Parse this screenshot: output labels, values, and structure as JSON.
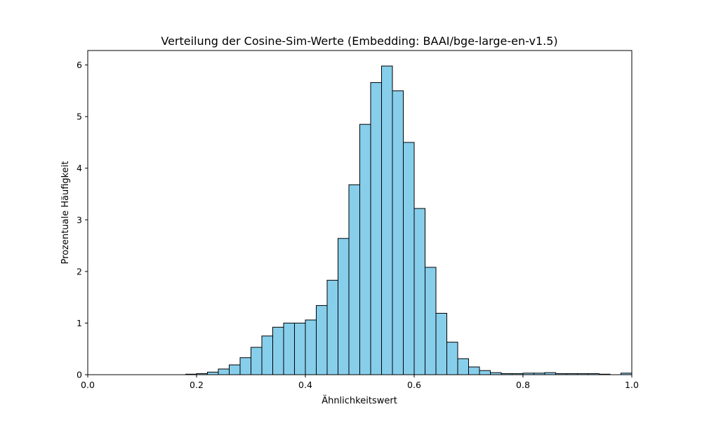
{
  "chart_data": {
    "type": "bar",
    "title": "Verteilung der Cosine-Sim-Werte (Embedding: BAAI/bge-large-en-v1.5)",
    "xlabel": "Ähnlichkeitswert",
    "ylabel": "Prozentuale Häufigkeit",
    "xlim": [
      0.0,
      1.0
    ],
    "ylim": [
      0,
      6.28
    ],
    "xticks": [
      "0.0",
      "0.2",
      "0.4",
      "0.6",
      "0.8",
      "1.0"
    ],
    "yticks": [
      "0",
      "1",
      "2",
      "3",
      "4",
      "5",
      "6"
    ],
    "bins": [
      {
        "start": 0.18,
        "end": 0.2,
        "value": 0.01
      },
      {
        "start": 0.2,
        "end": 0.22,
        "value": 0.02
      },
      {
        "start": 0.22,
        "end": 0.24,
        "value": 0.05
      },
      {
        "start": 0.24,
        "end": 0.26,
        "value": 0.11
      },
      {
        "start": 0.26,
        "end": 0.28,
        "value": 0.19
      },
      {
        "start": 0.28,
        "end": 0.3,
        "value": 0.33
      },
      {
        "start": 0.3,
        "end": 0.32,
        "value": 0.53
      },
      {
        "start": 0.32,
        "end": 0.34,
        "value": 0.75
      },
      {
        "start": 0.34,
        "end": 0.36,
        "value": 0.92
      },
      {
        "start": 0.36,
        "end": 0.38,
        "value": 1.0
      },
      {
        "start": 0.38,
        "end": 0.4,
        "value": 1.0
      },
      {
        "start": 0.4,
        "end": 0.42,
        "value": 1.06
      },
      {
        "start": 0.42,
        "end": 0.44,
        "value": 1.34
      },
      {
        "start": 0.44,
        "end": 0.46,
        "value": 1.83
      },
      {
        "start": 0.46,
        "end": 0.48,
        "value": 2.64
      },
      {
        "start": 0.48,
        "end": 0.5,
        "value": 3.68
      },
      {
        "start": 0.5,
        "end": 0.52,
        "value": 4.85
      },
      {
        "start": 0.52,
        "end": 0.54,
        "value": 5.66
      },
      {
        "start": 0.54,
        "end": 0.56,
        "value": 5.98
      },
      {
        "start": 0.56,
        "end": 0.58,
        "value": 5.5
      },
      {
        "start": 0.58,
        "end": 0.6,
        "value": 4.5
      },
      {
        "start": 0.6,
        "end": 0.62,
        "value": 3.22
      },
      {
        "start": 0.62,
        "end": 0.64,
        "value": 2.08
      },
      {
        "start": 0.64,
        "end": 0.66,
        "value": 1.19
      },
      {
        "start": 0.66,
        "end": 0.68,
        "value": 0.63
      },
      {
        "start": 0.68,
        "end": 0.7,
        "value": 0.31
      },
      {
        "start": 0.7,
        "end": 0.72,
        "value": 0.15
      },
      {
        "start": 0.72,
        "end": 0.74,
        "value": 0.08
      },
      {
        "start": 0.74,
        "end": 0.76,
        "value": 0.04
      },
      {
        "start": 0.76,
        "end": 0.78,
        "value": 0.02
      },
      {
        "start": 0.78,
        "end": 0.8,
        "value": 0.02
      },
      {
        "start": 0.8,
        "end": 0.82,
        "value": 0.03
      },
      {
        "start": 0.82,
        "end": 0.84,
        "value": 0.03
      },
      {
        "start": 0.84,
        "end": 0.86,
        "value": 0.04
      },
      {
        "start": 0.86,
        "end": 0.88,
        "value": 0.02
      },
      {
        "start": 0.88,
        "end": 0.9,
        "value": 0.02
      },
      {
        "start": 0.9,
        "end": 0.92,
        "value": 0.02
      },
      {
        "start": 0.92,
        "end": 0.94,
        "value": 0.02
      },
      {
        "start": 0.94,
        "end": 0.96,
        "value": 0.01
      },
      {
        "start": 0.98,
        "end": 1.0,
        "value": 0.03
      }
    ],
    "bar_color": "#87ceeb",
    "edge_color": "#000000",
    "grid": false,
    "legend": "none"
  }
}
